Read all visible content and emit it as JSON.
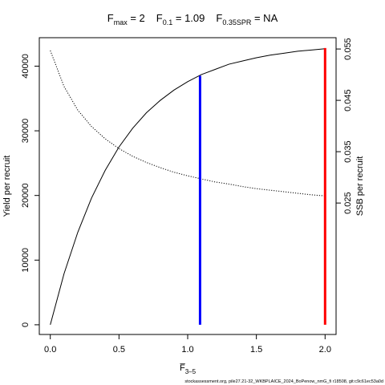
{
  "chart_data": {
    "type": "line",
    "title": [
      {
        "base": "F",
        "sub": "max",
        "text": " = 2"
      },
      {
        "base": "F",
        "sub": "0.1",
        "text": " = 1.09"
      },
      {
        "base": "F",
        "sub": "0.35SPR",
        "text": " = NA"
      }
    ],
    "xlabel": {
      "base": "F̅",
      "sub": "3–5"
    },
    "ylabel": "Yield per recruit",
    "y2label": "SSB per recruit",
    "footer": "stockassessment.org, pile27.21-32_WKBPLAICE_2024_BoPenow_nmG_fi r18508, git:c9c61ec53a0d",
    "x": [
      0,
      0.1,
      0.2,
      0.3,
      0.4,
      0.5,
      0.6,
      0.7,
      0.8,
      0.9,
      1.0,
      1.1,
      1.2,
      1.3,
      1.4,
      1.5,
      1.6,
      1.7,
      1.8,
      1.9,
      2.0
    ],
    "series": [
      {
        "color": "#000000",
        "dash": "solid",
        "values": [
          0,
          7900,
          14300,
          19600,
          23900,
          27500,
          30400,
          32800,
          34700,
          36300,
          37600,
          38700,
          39500,
          40300,
          40800,
          41300,
          41700,
          42000,
          42300,
          42500,
          42700
        ]
      },
      {
        "color": "#000000",
        "dash": "dotted",
        "axis": "y2",
        "values": [
          0.0547,
          0.0477,
          0.0431,
          0.0399,
          0.0375,
          0.0356,
          0.0341,
          0.0329,
          0.0319,
          0.031,
          0.0303,
          0.0297,
          0.0291,
          0.0287,
          0.0282,
          0.0278,
          0.0275,
          0.0272,
          0.0269,
          0.0266,
          0.0264
        ]
      }
    ],
    "reference_lines": [
      {
        "x": 1.09,
        "y": [
          0,
          38500
        ],
        "color": "#0000ff"
      },
      {
        "x": 2,
        "y": [
          0,
          42800
        ],
        "color": "#ff0000"
      }
    ],
    "xlim": [
      -0.08,
      2.08
    ],
    "xticks": [
      {
        "value": 0,
        "label": "0.0"
      },
      0.5,
      {
        "value": 1,
        "label": "1.0"
      },
      1.5,
      {
        "value": 2,
        "label": "2.0"
      }
    ],
    "ylim": [
      -1500,
      44400
    ],
    "yticks": [
      0,
      10000,
      20000,
      30000,
      40000
    ],
    "y2lim": [
      -0.0006,
      0.0572
    ],
    "y2ticks": [
      0.025,
      0.035,
      0.045,
      0.055
    ]
  }
}
